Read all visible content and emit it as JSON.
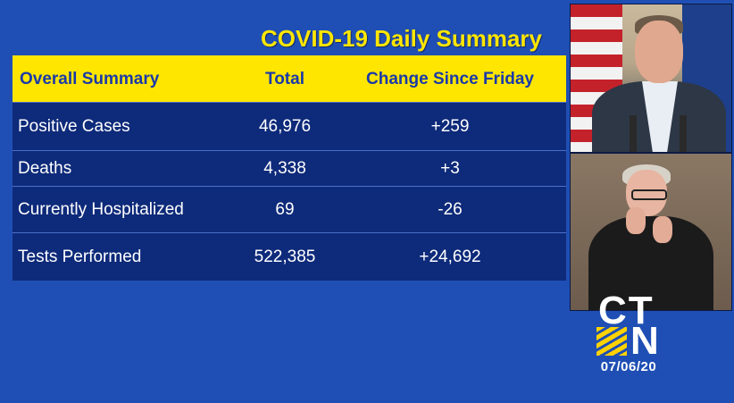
{
  "title": "COVID-19 Daily Summary",
  "table": {
    "headers": [
      "Overall Summary",
      "Total",
      "Change Since Friday"
    ],
    "rows": [
      {
        "label": "Positive Cases",
        "total": "46,976",
        "change": "+259"
      },
      {
        "label": "Deaths",
        "total": "4,338",
        "change": "+3"
      },
      {
        "label": "Currently Hospitalized",
        "total": "69",
        "change": "-26"
      },
      {
        "label": "Tests Performed",
        "total": "522,385",
        "change": "+24,692"
      }
    ]
  },
  "logo": {
    "line1": "CT",
    "line2": "N"
  },
  "date": "07/06/20",
  "colors": {
    "background": "#1f4fb4",
    "header": "#ffe600",
    "table": "#0e2a7a",
    "title": "#ffe600"
  }
}
